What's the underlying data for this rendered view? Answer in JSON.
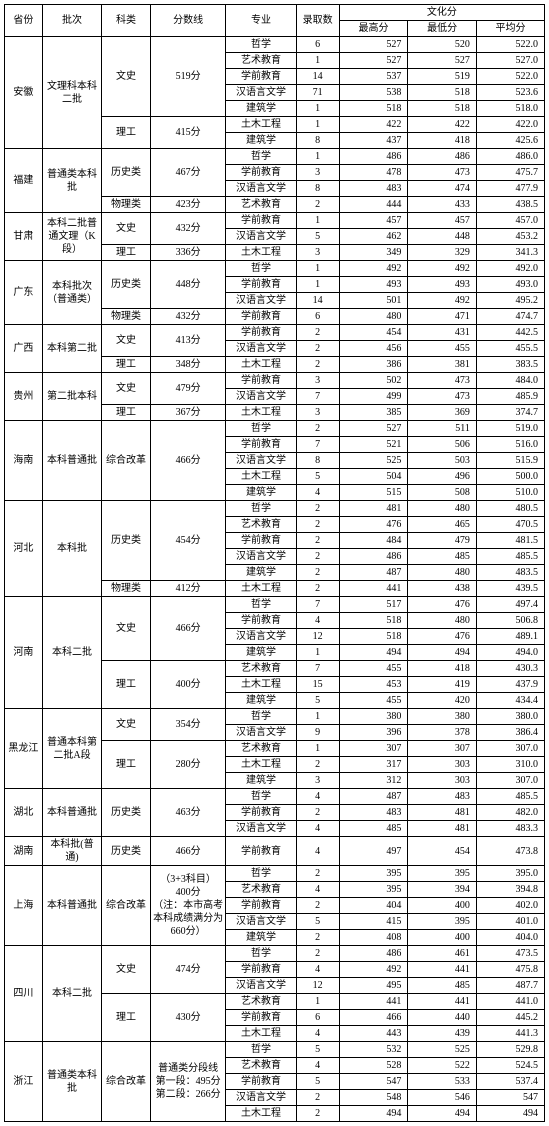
{
  "headers": {
    "province": "省份",
    "batch": "批次",
    "category": "科类",
    "cutoff": "分数线",
    "major": "专业",
    "enrolled": "录取数",
    "culture": "文化分",
    "max": "最高分",
    "min": "最低分",
    "avg": "平均分"
  },
  "col_widths_pct": [
    7,
    11,
    9,
    14,
    13,
    8,
    12.7,
    12.7,
    12.6
  ],
  "provinces": [
    {
      "name": "安徽",
      "batch": "文理科本科二批",
      "groups": [
        {
          "category": "文史",
          "cutoff": "519分",
          "majors": [
            {
              "m": "哲学",
              "n": 6,
              "hi": 527,
              "lo": 520,
              "avg": "522.0"
            },
            {
              "m": "艺术教育",
              "n": 1,
              "hi": 527,
              "lo": 527,
              "avg": "527.0"
            },
            {
              "m": "学前教育",
              "n": 14,
              "hi": 537,
              "lo": 519,
              "avg": "522.0"
            },
            {
              "m": "汉语言文学",
              "n": 71,
              "hi": 538,
              "lo": 518,
              "avg": "523.6"
            },
            {
              "m": "建筑学",
              "n": 1,
              "hi": 518,
              "lo": 518,
              "avg": "518.0"
            }
          ]
        },
        {
          "category": "理工",
          "cutoff": "415分",
          "majors": [
            {
              "m": "土木工程",
              "n": 1,
              "hi": 422,
              "lo": 422,
              "avg": "422.0"
            },
            {
              "m": "建筑学",
              "n": 8,
              "hi": 437,
              "lo": 418,
              "avg": "425.6"
            }
          ]
        }
      ]
    },
    {
      "name": "福建",
      "batch": "普通类本科批",
      "groups": [
        {
          "category": "历史类",
          "cutoff": "467分",
          "majors": [
            {
              "m": "哲学",
              "n": 1,
              "hi": 486,
              "lo": 486,
              "avg": "486.0"
            },
            {
              "m": "学前教育",
              "n": 3,
              "hi": 478,
              "lo": 473,
              "avg": "475.7"
            },
            {
              "m": "汉语言文学",
              "n": 8,
              "hi": 483,
              "lo": 474,
              "avg": "477.9"
            }
          ]
        },
        {
          "category": "物理类",
          "cutoff": "423分",
          "majors": [
            {
              "m": "艺术教育",
              "n": 2,
              "hi": 444,
              "lo": 433,
              "avg": "438.5"
            }
          ]
        }
      ]
    },
    {
      "name": "甘肃",
      "batch": "本科二批普通文理（K段）",
      "groups": [
        {
          "category": "文史",
          "cutoff": "432分",
          "majors": [
            {
              "m": "学前教育",
              "n": 1,
              "hi": 457,
              "lo": 457,
              "avg": "457.0"
            },
            {
              "m": "汉语言文学",
              "n": 5,
              "hi": 462,
              "lo": 448,
              "avg": "453.2"
            }
          ]
        },
        {
          "category": "理工",
          "cutoff": "336分",
          "majors": [
            {
              "m": "土木工程",
              "n": 3,
              "hi": 349,
              "lo": 329,
              "avg": "341.3"
            }
          ]
        }
      ]
    },
    {
      "name": "广东",
      "batch": "本科批次（普通类）",
      "groups": [
        {
          "category": "历史类",
          "cutoff": "448分",
          "majors": [
            {
              "m": "哲学",
              "n": 1,
              "hi": 492,
              "lo": 492,
              "avg": "492.0"
            },
            {
              "m": "学前教育",
              "n": 1,
              "hi": 493,
              "lo": 493,
              "avg": "493.0"
            },
            {
              "m": "汉语言文学",
              "n": 14,
              "hi": 501,
              "lo": 492,
              "avg": "495.2"
            }
          ]
        },
        {
          "category": "物理类",
          "cutoff": "432分",
          "majors": [
            {
              "m": "学前教育",
              "n": 6,
              "hi": 480,
              "lo": 471,
              "avg": "474.7"
            }
          ]
        }
      ]
    },
    {
      "name": "广西",
      "batch": "本科第二批",
      "groups": [
        {
          "category": "文史",
          "cutoff": "413分",
          "majors": [
            {
              "m": "学前教育",
              "n": 2,
              "hi": 454,
              "lo": 431,
              "avg": "442.5"
            },
            {
              "m": "汉语言文学",
              "n": 2,
              "hi": 456,
              "lo": 455,
              "avg": "455.5"
            }
          ]
        },
        {
          "category": "理工",
          "cutoff": "348分",
          "majors": [
            {
              "m": "土木工程",
              "n": 2,
              "hi": 386,
              "lo": 381,
              "avg": "383.5"
            }
          ]
        }
      ]
    },
    {
      "name": "贵州",
      "batch": "第二批本科",
      "groups": [
        {
          "category": "文史",
          "cutoff": "479分",
          "majors": [
            {
              "m": "学前教育",
              "n": 3,
              "hi": 502,
              "lo": 473,
              "avg": "484.0"
            },
            {
              "m": "汉语言文学",
              "n": 7,
              "hi": 499,
              "lo": 473,
              "avg": "485.9"
            }
          ]
        },
        {
          "category": "理工",
          "cutoff": "367分",
          "majors": [
            {
              "m": "土木工程",
              "n": 3,
              "hi": 385,
              "lo": 369,
              "avg": "374.7"
            }
          ]
        }
      ]
    },
    {
      "name": "海南",
      "batch": "本科普通批",
      "groups": [
        {
          "category": "综合改革",
          "cutoff": "466分",
          "majors": [
            {
              "m": "哲学",
              "n": 2,
              "hi": 527,
              "lo": 511,
              "avg": "519.0"
            },
            {
              "m": "学前教育",
              "n": 7,
              "hi": 521,
              "lo": 506,
              "avg": "516.0"
            },
            {
              "m": "汉语言文学",
              "n": 8,
              "hi": 525,
              "lo": 503,
              "avg": "515.9"
            },
            {
              "m": "土木工程",
              "n": 5,
              "hi": 504,
              "lo": 496,
              "avg": "500.0"
            },
            {
              "m": "建筑学",
              "n": 4,
              "hi": 515,
              "lo": 508,
              "avg": "510.0"
            }
          ]
        }
      ]
    },
    {
      "name": "河北",
      "batch": "本科批",
      "groups": [
        {
          "category": "历史类",
          "cutoff": "454分",
          "majors": [
            {
              "m": "哲学",
              "n": 2,
              "hi": 481,
              "lo": 480,
              "avg": "480.5"
            },
            {
              "m": "艺术教育",
              "n": 2,
              "hi": 476,
              "lo": 465,
              "avg": "470.5"
            },
            {
              "m": "学前教育",
              "n": 2,
              "hi": 484,
              "lo": 479,
              "avg": "481.5"
            },
            {
              "m": "汉语言文学",
              "n": 2,
              "hi": 486,
              "lo": 485,
              "avg": "485.5"
            },
            {
              "m": "建筑学",
              "n": 2,
              "hi": 487,
              "lo": 480,
              "avg": "483.5"
            }
          ]
        },
        {
          "category": "物理类",
          "cutoff": "412分",
          "majors": [
            {
              "m": "土木工程",
              "n": 2,
              "hi": 441,
              "lo": 438,
              "avg": "439.5"
            }
          ]
        }
      ]
    },
    {
      "name": "河南",
      "batch": "本科二批",
      "groups": [
        {
          "category": "文史",
          "cutoff": "466分",
          "majors": [
            {
              "m": "哲学",
              "n": 7,
              "hi": 517,
              "lo": 476,
              "avg": "497.4"
            },
            {
              "m": "学前教育",
              "n": 4,
              "hi": 518,
              "lo": 480,
              "avg": "506.8"
            },
            {
              "m": "汉语言文学",
              "n": 12,
              "hi": 518,
              "lo": 476,
              "avg": "489.1"
            },
            {
              "m": "建筑学",
              "n": 1,
              "hi": 494,
              "lo": 494,
              "avg": "494.0"
            }
          ]
        },
        {
          "category": "理工",
          "cutoff": "400分",
          "majors": [
            {
              "m": "艺术教育",
              "n": 7,
              "hi": 455,
              "lo": 418,
              "avg": "430.3"
            },
            {
              "m": "土木工程",
              "n": 15,
              "hi": 453,
              "lo": 419,
              "avg": "437.9"
            },
            {
              "m": "建筑学",
              "n": 5,
              "hi": 455,
              "lo": 420,
              "avg": "434.4"
            }
          ]
        }
      ]
    },
    {
      "name": "黑龙江",
      "batch": "普通本科第二批A段",
      "groups": [
        {
          "category": "文史",
          "cutoff": "354分",
          "majors": [
            {
              "m": "哲学",
              "n": 1,
              "hi": 380,
              "lo": 380,
              "avg": "380.0"
            },
            {
              "m": "汉语言文学",
              "n": 9,
              "hi": 396,
              "lo": 378,
              "avg": "386.4"
            }
          ]
        },
        {
          "category": "理工",
          "cutoff": "280分",
          "majors": [
            {
              "m": "艺术教育",
              "n": 1,
              "hi": 307,
              "lo": 307,
              "avg": "307.0"
            },
            {
              "m": "土木工程",
              "n": 2,
              "hi": 317,
              "lo": 303,
              "avg": "310.0"
            },
            {
              "m": "建筑学",
              "n": 3,
              "hi": 312,
              "lo": 303,
              "avg": "307.0"
            }
          ]
        }
      ]
    },
    {
      "name": "湖北",
      "batch": "本科普通批",
      "groups": [
        {
          "category": "历史类",
          "cutoff": "463分",
          "majors": [
            {
              "m": "哲学",
              "n": 4,
              "hi": 487,
              "lo": 483,
              "avg": "485.5"
            },
            {
              "m": "学前教育",
              "n": 2,
              "hi": 483,
              "lo": 481,
              "avg": "482.0"
            },
            {
              "m": "汉语言文学",
              "n": 4,
              "hi": 485,
              "lo": 481,
              "avg": "483.3"
            }
          ]
        }
      ]
    },
    {
      "name": "湖南",
      "batch": "本科批(普通)",
      "groups": [
        {
          "category": "历史类",
          "cutoff": "466分",
          "majors": [
            {
              "m": "学前教育",
              "n": 4,
              "hi": 497,
              "lo": 454,
              "avg": "473.8"
            }
          ]
        }
      ]
    },
    {
      "name": "上海",
      "batch": "本科普通批",
      "groups": [
        {
          "category": "综合改革",
          "cutoff": "（3+3科目）\n400分\n（注：本市高考本科成绩满分为660分）",
          "majors": [
            {
              "m": "哲学",
              "n": 2,
              "hi": 395,
              "lo": 395,
              "avg": "395.0"
            },
            {
              "m": "艺术教育",
              "n": 4,
              "hi": 395,
              "lo": 394,
              "avg": "394.8"
            },
            {
              "m": "学前教育",
              "n": 2,
              "hi": 404,
              "lo": 400,
              "avg": "402.0"
            },
            {
              "m": "汉语言文学",
              "n": 5,
              "hi": 415,
              "lo": 395,
              "avg": "401.0"
            },
            {
              "m": "建筑学",
              "n": 2,
              "hi": 408,
              "lo": 400,
              "avg": "404.0"
            }
          ]
        }
      ]
    },
    {
      "name": "四川",
      "batch": "本科二批",
      "groups": [
        {
          "category": "文史",
          "cutoff": "474分",
          "majors": [
            {
              "m": "哲学",
              "n": 2,
              "hi": 486,
              "lo": 461,
              "avg": "473.5"
            },
            {
              "m": "学前教育",
              "n": 4,
              "hi": 492,
              "lo": 441,
              "avg": "475.8"
            },
            {
              "m": "汉语言文学",
              "n": 12,
              "hi": 495,
              "lo": 485,
              "avg": "487.7"
            }
          ]
        },
        {
          "category": "理工",
          "cutoff": "430分",
          "majors": [
            {
              "m": "艺术教育",
              "n": 1,
              "hi": 441,
              "lo": 441,
              "avg": "441.0"
            },
            {
              "m": "学前教育",
              "n": 6,
              "hi": 466,
              "lo": 440,
              "avg": "445.2"
            },
            {
              "m": "土木工程",
              "n": 4,
              "hi": 443,
              "lo": 439,
              "avg": "441.3"
            }
          ]
        }
      ]
    },
    {
      "name": "浙江",
      "batch": "普通类本科批",
      "groups": [
        {
          "category": "综合改革",
          "cutoff": "普通类分段线\n第一段：495分\n第二段：266分",
          "majors": [
            {
              "m": "哲学",
              "n": 5,
              "hi": 532,
              "lo": 525,
              "avg": "529.8"
            },
            {
              "m": "艺术教育",
              "n": 4,
              "hi": 528,
              "lo": 522,
              "avg": "524.5"
            },
            {
              "m": "学前教育",
              "n": 5,
              "hi": 547,
              "lo": 533,
              "avg": "537.4"
            },
            {
              "m": "汉语言文学",
              "n": 2,
              "hi": 548,
              "lo": 546,
              "avg": "547"
            },
            {
              "m": "土木工程",
              "n": 2,
              "hi": 494,
              "lo": 494,
              "avg": "494"
            }
          ]
        }
      ]
    }
  ]
}
